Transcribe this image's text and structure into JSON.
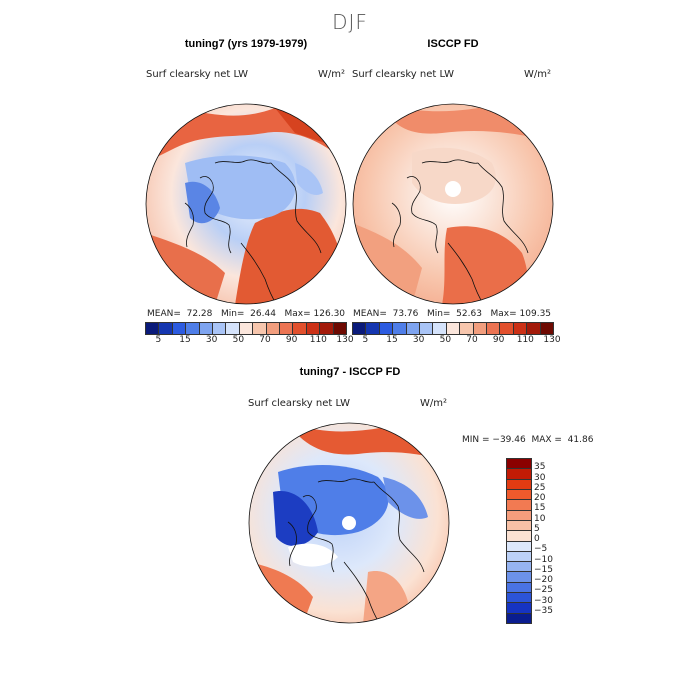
{
  "figure": {
    "title": "DJF"
  },
  "panels": [
    {
      "title": "tuning7 (yrs 1979-1979)",
      "variable": "Surf clearsky net LW",
      "units": "W/m²",
      "stats": "MEAN=  72.28   Min=  26.44   Max= 126.30"
    },
    {
      "title": "ISCCP FD",
      "variable": "Surf clearsky net LW",
      "units": "W/m²",
      "stats": "MEAN=  73.76   Min=  52.63   Max= 109.35"
    },
    {
      "title": "tuning7 - ISCCP FD",
      "variable": "Surf clearsky net LW",
      "units": "W/m²",
      "stats": "MIN = −39.46  MAX =  41.86"
    }
  ],
  "colorbar_top": {
    "ticks": [
      "5",
      "15",
      "30",
      "50",
      "70",
      "90",
      "110",
      "130"
    ],
    "colors": [
      "#0a1a7a",
      "#1536b0",
      "#2c5be0",
      "#4f7ee8",
      "#7ea4f0",
      "#a9c4f6",
      "#d5e3fb",
      "#fbe6dc",
      "#f7c6ad",
      "#f29e7e",
      "#ec7453",
      "#e2502d",
      "#cc3117",
      "#a31a0a",
      "#6e0a02"
    ]
  },
  "colorbar_diff": {
    "ticks": [
      "35",
      "30",
      "25",
      "20",
      "15",
      "10",
      "5",
      "0",
      "−5",
      "−10",
      "−15",
      "−20",
      "−25",
      "−30",
      "−35"
    ],
    "colors": [
      "#8b0000",
      "#c21b05",
      "#e13b12",
      "#ef5a2c",
      "#f27a52",
      "#f59d7c",
      "#f8c1a6",
      "#fbe2d3",
      "#dde8fb",
      "#bcd1f7",
      "#96b4f1",
      "#6c92ea",
      "#4a73e3",
      "#2c54d7",
      "#1634c2",
      "#0a1d8f"
    ]
  }
}
